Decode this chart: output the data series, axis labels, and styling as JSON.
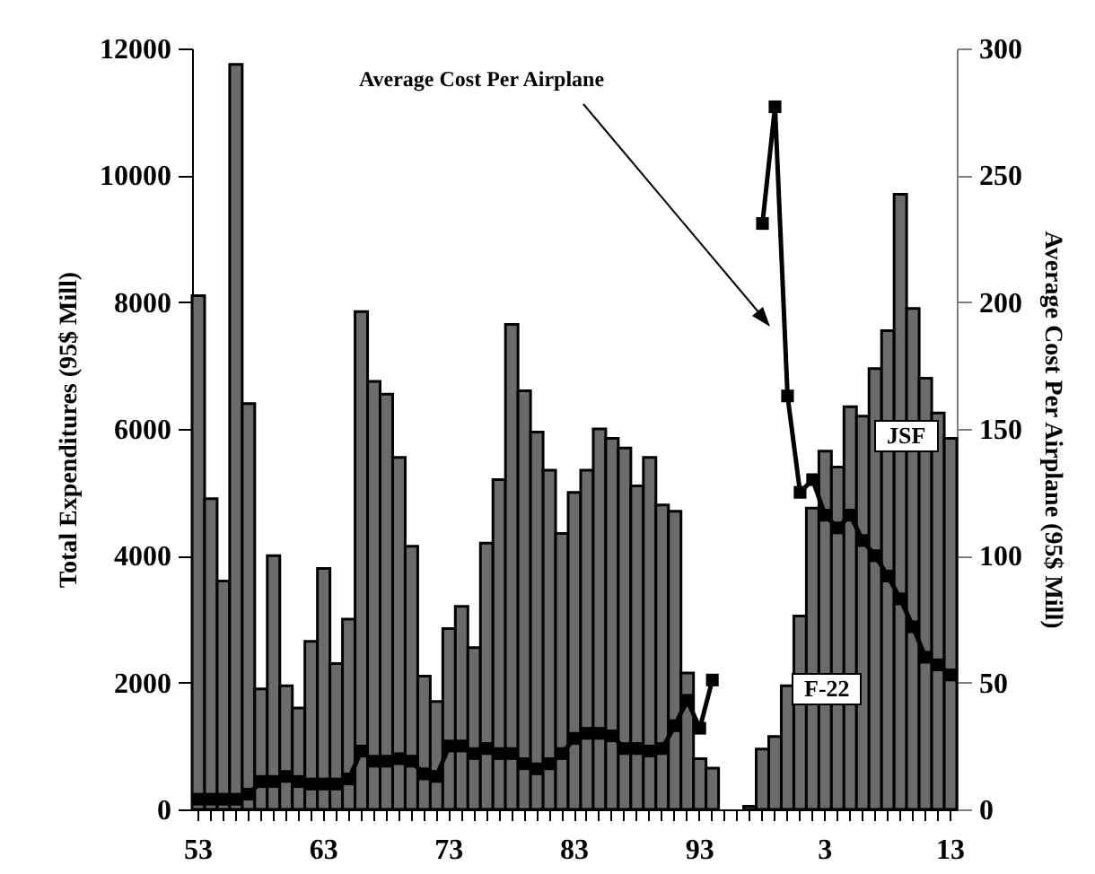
{
  "chart_data": {
    "type": "bar",
    "categories": [
      "53",
      null,
      null,
      null,
      null,
      null,
      null,
      null,
      null,
      null,
      "63",
      null,
      null,
      null,
      null,
      null,
      null,
      null,
      null,
      null,
      "73",
      null,
      null,
      null,
      null,
      null,
      null,
      null,
      null,
      null,
      "83",
      null,
      null,
      null,
      null,
      null,
      null,
      null,
      null,
      null,
      "93",
      null,
      null,
      null,
      null,
      null,
      null,
      null,
      null,
      null,
      "3",
      null,
      null,
      null,
      null,
      null,
      null,
      null,
      null,
      null,
      "13"
    ],
    "series": [
      {
        "color": "#6b6b6b",
        "values": [
          8100,
          4900,
          3600,
          11750,
          6400,
          1900,
          4000,
          1950,
          1600,
          2650,
          3800,
          2300,
          3000,
          7850,
          6750,
          6550,
          5550,
          4150,
          2100,
          1700,
          2850,
          3200,
          2550,
          4200,
          5200,
          7650,
          6600,
          5950,
          5350,
          4350,
          5000,
          5350,
          6000,
          5850,
          5700,
          5100,
          5550,
          4800,
          4700,
          2150,
          800,
          650,
          null,
          null,
          50,
          950,
          1150,
          1950,
          3050,
          4750,
          5650,
          5400,
          6350,
          6200,
          6950,
          7550,
          9700,
          7900,
          6800,
          6250,
          5850
        ]
      },
      {
        "type": "line",
        "axis": "y2",
        "color": "#000000",
        "values": [
          4,
          4,
          4,
          4,
          6,
          11,
          11,
          13,
          11,
          10,
          10,
          10,
          12,
          23,
          19,
          19,
          20,
          19,
          14,
          13,
          25,
          25,
          22,
          24,
          22,
          22,
          18,
          16,
          18,
          22,
          28,
          30,
          30,
          29,
          24,
          24,
          23,
          24,
          33,
          43,
          32,
          51,
          null,
          null,
          null,
          231,
          277,
          163,
          125,
          130,
          116,
          111,
          116,
          106,
          100,
          92,
          83,
          72,
          60,
          57,
          53
        ]
      }
    ],
    "ylabel": "Total Expenditures (95$ Mill)",
    "y2label": "Average Cost Per Airplane (95$ Mill)",
    "ylim": [
      0,
      12000
    ],
    "yticks": [
      0,
      2000,
      4000,
      6000,
      8000,
      10000,
      12000
    ],
    "y2lim": [
      0,
      300
    ],
    "y2ticks": [
      0,
      50,
      100,
      150,
      200,
      250,
      300
    ],
    "marker": "square",
    "line_style": "solid",
    "annotations": [
      "Average Cost Per Airplane",
      "F-22",
      "JSF"
    ]
  }
}
